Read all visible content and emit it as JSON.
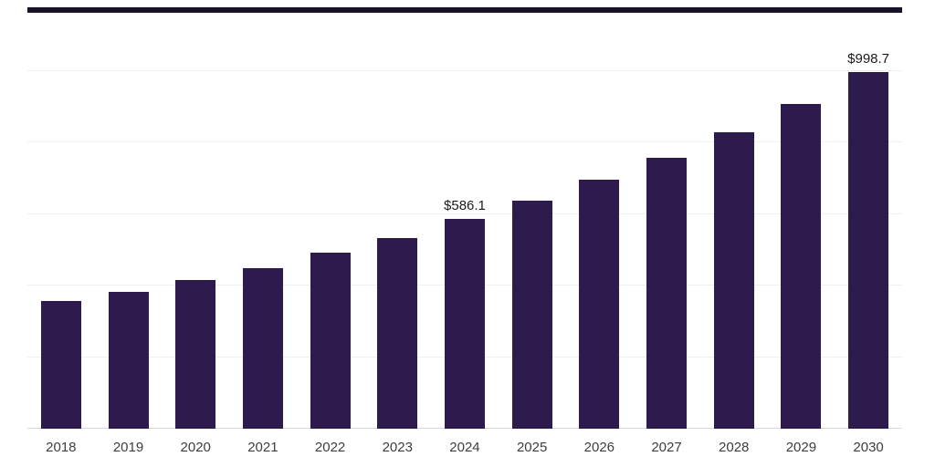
{
  "top_rule": {
    "color": "#191229"
  },
  "chart_data": {
    "type": "bar",
    "title": "",
    "xlabel": "",
    "ylabel": "",
    "categories": [
      "2018",
      "2019",
      "2020",
      "2021",
      "2022",
      "2023",
      "2024",
      "2025",
      "2026",
      "2027",
      "2028",
      "2029",
      "2030"
    ],
    "values": [
      357,
      382,
      415,
      450,
      492,
      533,
      586.1,
      637,
      696,
      758,
      830,
      907,
      998.7
    ],
    "data_labels": [
      "",
      "",
      "",
      "",
      "",
      "",
      "$586.1",
      "",
      "",
      "",
      "",
      "",
      "$998.7"
    ],
    "bar_color": "#2d1b4e",
    "ylim": [
      0,
      1000
    ],
    "grid_step": 200,
    "grid": true,
    "legend_position": "none",
    "gridline_color": "#efefef",
    "axis_line_color": "#d9d9d9",
    "data_label_color": "#1a1a1a",
    "tick_label_color": "#3d3d3d"
  }
}
